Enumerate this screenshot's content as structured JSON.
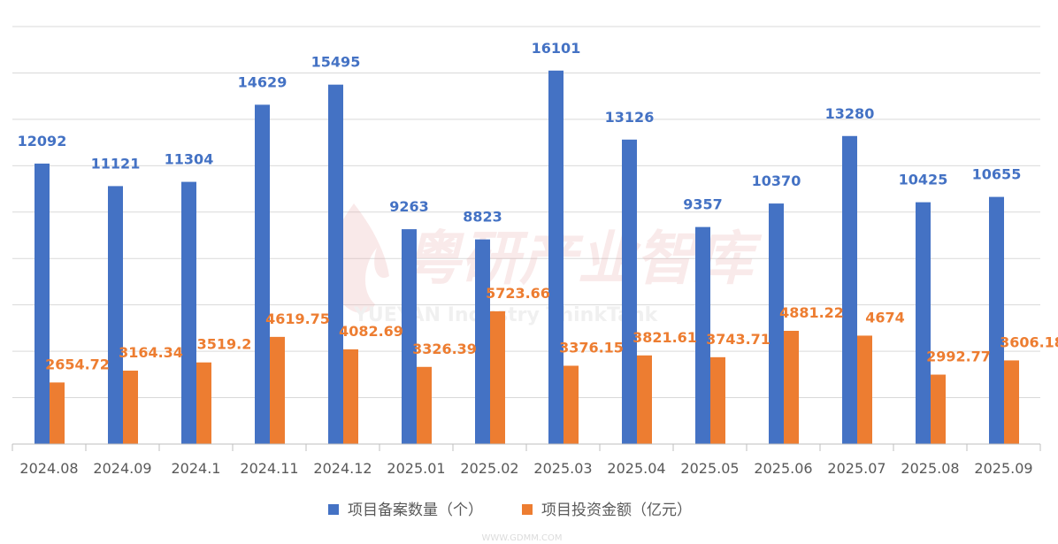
{
  "chart_data": {
    "type": "bar",
    "title": "",
    "xlabel": "",
    "ylabel": "",
    "ylim": [
      0,
      18000
    ],
    "grid": true,
    "legend_position": "bottom",
    "categories": [
      "2024.08",
      "2024.09",
      "2024.1",
      "2024.11",
      "2024.12",
      "2025.01",
      "2025.02",
      "2025.03",
      "2025.04",
      "2025.05",
      "2025.06",
      "2025.07",
      "2025.08",
      "2025.09"
    ],
    "series": [
      {
        "name": "项目备案数量（个）",
        "color": "#4472c4",
        "values": [
          12092,
          11121,
          11304,
          14629,
          15495,
          9263,
          8823,
          16101,
          13126,
          9357,
          10370,
          13280,
          10425,
          10655
        ],
        "labels": [
          "12092",
          "11121",
          "11304",
          "14629",
          "15495",
          "9263",
          "8823",
          "16101",
          "13126",
          "9357",
          "10370",
          "13280",
          "10425",
          "10655"
        ]
      },
      {
        "name": "项目投资金额（亿元）",
        "color": "#ed7d31",
        "values": [
          2654.72,
          3164.34,
          3519.2,
          4619.75,
          4082.69,
          3326.39,
          5723.66,
          3376.15,
          3821.61,
          3743.71,
          4881.22,
          4674,
          2992.77,
          3606.18
        ],
        "labels": [
          "2654.72",
          "3164.34",
          "3519.2",
          "4619.75",
          "4082.69",
          "3326.39",
          "5723.66",
          "3376.15",
          "3821.61",
          "3743.71",
          "4881.22",
          "4674",
          "2992.77",
          "3606.18"
        ]
      }
    ]
  },
  "watermarks": {
    "cn": "粤研产业智库",
    "en": "YUEYAN Industry ThinkTank",
    "site": "WWW.GDMM.COM"
  }
}
